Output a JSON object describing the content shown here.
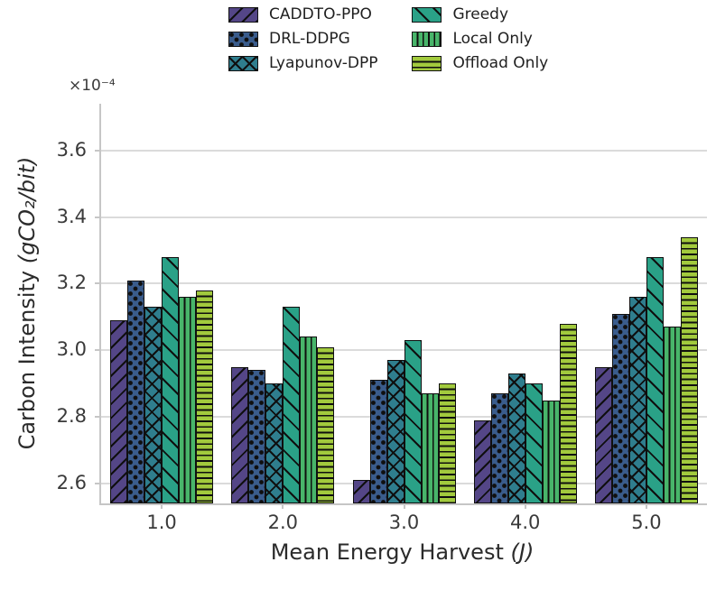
{
  "chart_data": {
    "type": "bar",
    "title": "",
    "xlabel": "Mean Energy Harvest (J)",
    "xlabel_text": "Mean Energy Harvest ",
    "xlabel_unit": "(J)",
    "ylabel": "Carbon Intensity (gCO2/bit)",
    "ylabel_text": "Carbon Intensity ",
    "ylabel_unit": "(gCO₂/bit)",
    "offset_label": "×10⁻⁴",
    "categories": [
      "1.0",
      "2.0",
      "3.0",
      "4.0",
      "5.0"
    ],
    "series": [
      {
        "name": "CADDTO-PPO",
        "color": "#544687",
        "hatch": "//",
        "values": [
          3.09,
          2.95,
          2.61,
          2.79,
          2.95
        ]
      },
      {
        "name": "DRL-DDPG",
        "color": "#3a5c8c",
        "hatch": "..",
        "values": [
          3.21,
          2.94,
          2.91,
          2.87,
          3.11
        ]
      },
      {
        "name": "Lyapunov-DPP",
        "color": "#2f7e8e",
        "hatch": "xx",
        "values": [
          3.13,
          2.9,
          2.97,
          2.93,
          3.16
        ]
      },
      {
        "name": "Greedy",
        "color": "#2aa187",
        "hatch": "\\",
        "values": [
          3.28,
          3.13,
          3.03,
          2.9,
          3.28
        ]
      },
      {
        "name": "Local Only",
        "color": "#48b56a",
        "hatch": "||",
        "values": [
          3.16,
          3.04,
          2.87,
          2.85,
          3.07
        ]
      },
      {
        "name": "Offload Only",
        "color": "#a2ca3d",
        "hatch": "--",
        "values": [
          3.18,
          3.01,
          2.9,
          3.08,
          3.34
        ]
      }
    ],
    "ylim": [
      2.54,
      3.74
    ],
    "yticks": [
      2.6,
      2.8,
      3.0,
      3.2,
      3.4,
      3.6
    ],
    "value_scale": "1e-4",
    "grid": true,
    "legend_position": "top"
  },
  "colors": {
    "grid": "#dbdbdb",
    "spine": "#c6c6c6",
    "bar_edge": "#0f0f0f",
    "tick_text": "#3a3a3a",
    "label_text": "#2b2b2b"
  }
}
